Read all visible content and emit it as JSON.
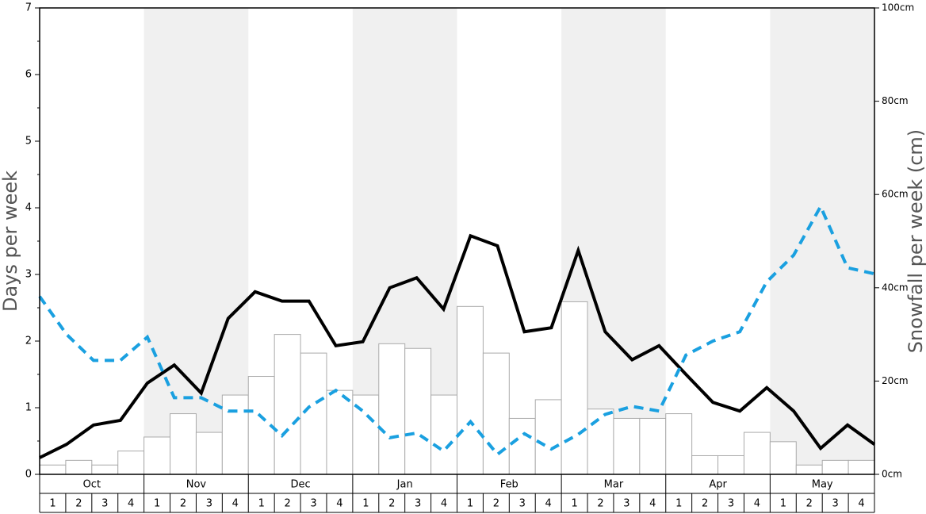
{
  "chart_data": {
    "type": "combo",
    "y_label": "Days per week",
    "y2_label": "Snowfall per week (cm)",
    "months": [
      "Oct",
      "Nov",
      "Dec",
      "Jan",
      "Feb",
      "Mar",
      "Apr",
      "May"
    ],
    "weeks": [
      "1",
      "2",
      "3",
      "4"
    ],
    "ylim": [
      0,
      7
    ],
    "yticks": [
      0,
      1,
      2,
      3,
      4,
      5,
      6,
      7
    ],
    "y2lim": [
      0,
      100
    ],
    "y2ticks": [
      {
        "value": 0,
        "label": "0cm"
      },
      {
        "value": 20,
        "label": "20cm"
      },
      {
        "value": 40,
        "label": "40cm"
      },
      {
        "value": 60,
        "label": "60cm"
      },
      {
        "value": 80,
        "label": "80cm"
      },
      {
        "value": 100,
        "label": "100cm"
      }
    ],
    "bars": {
      "axis": "y2",
      "color": "#ffffff",
      "values": [
        2,
        3,
        2,
        5,
        8,
        13,
        9,
        17,
        21,
        30,
        26,
        18,
        17,
        28,
        27,
        17,
        36,
        26,
        12,
        16,
        37,
        14,
        12,
        12,
        13,
        4,
        4,
        9,
        7,
        2,
        3,
        3
      ]
    },
    "series": [
      {
        "color": "#000000",
        "style": "solid",
        "values": [
          0.25,
          0.45,
          0.74,
          0.81,
          1.37,
          1.64,
          1.22,
          2.34,
          2.74,
          2.6,
          2.6,
          1.93,
          1.99,
          2.8,
          2.95,
          2.48,
          3.58,
          3.43,
          2.14,
          2.2,
          3.36,
          2.14,
          1.72,
          1.93,
          1.5,
          1.08,
          0.95,
          1.3,
          0.95,
          0.39,
          0.74,
          0.45
        ]
      },
      {
        "color": "#1aa0e0",
        "style": "dashed",
        "values": [
          2.67,
          2.1,
          1.71,
          1.71,
          2.06,
          1.15,
          1.15,
          0.95,
          0.95,
          0.58,
          1.01,
          1.26,
          0.95,
          0.55,
          0.62,
          0.35,
          0.79,
          0.3,
          0.61,
          0.38,
          0.6,
          0.9,
          1.02,
          0.95,
          1.79,
          2.0,
          2.14,
          2.89,
          3.29,
          4.02,
          3.1,
          3.01
        ]
      }
    ]
  }
}
